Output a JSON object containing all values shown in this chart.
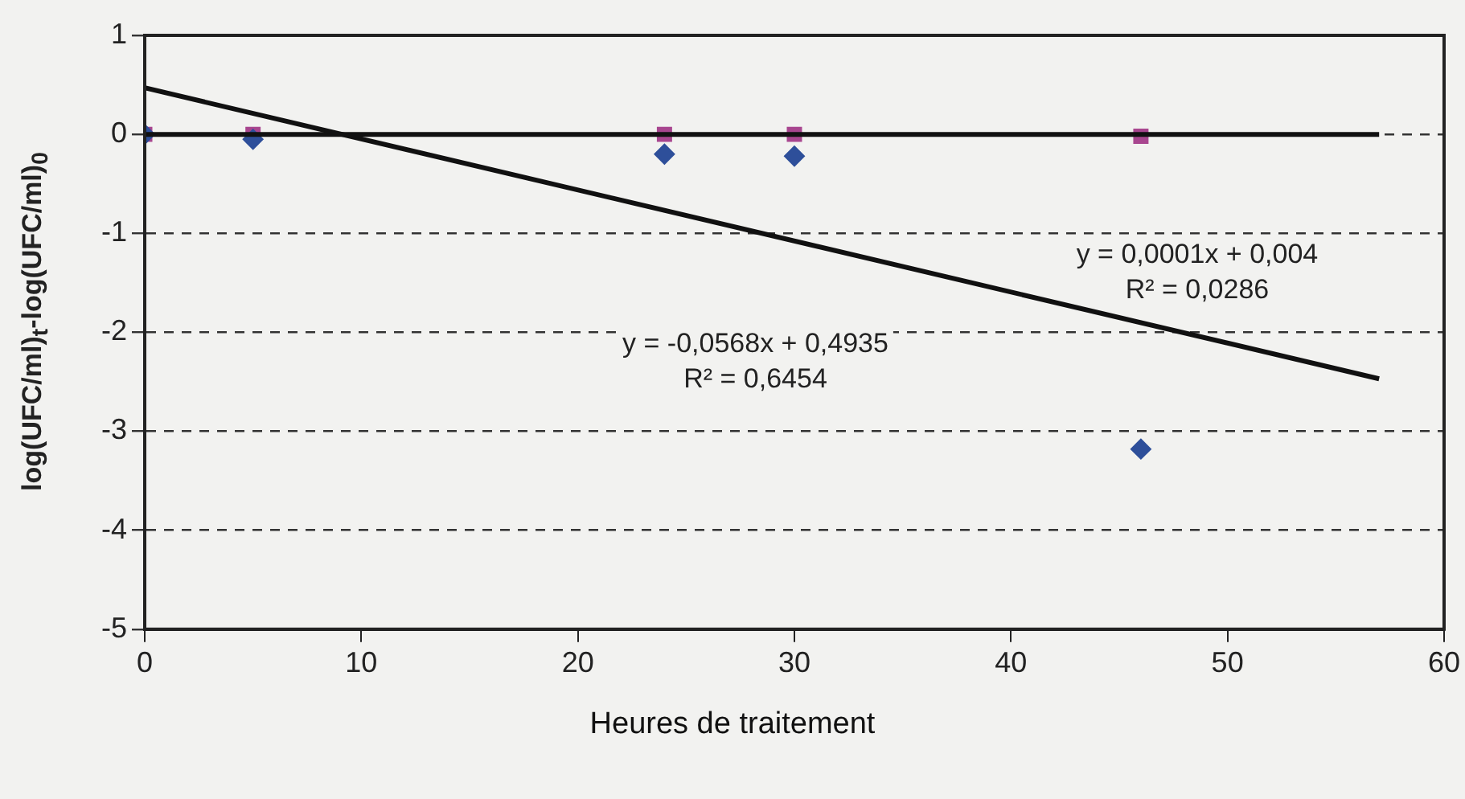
{
  "chart_data": {
    "type": "scatter",
    "xlabel": "Heures de traitement",
    "ylabel": "log(UFC/ml)$_{t}$-log(UFC/ml)$_{0}$",
    "xlim": [
      0,
      60
    ],
    "xticks": [
      0,
      10,
      20,
      30,
      40,
      50,
      60
    ],
    "ylim": [
      -5,
      1
    ],
    "yticks": [
      -5,
      -4,
      -3,
      -2,
      -1,
      0,
      1
    ],
    "grid": "y",
    "legend": false,
    "series": [
      {
        "type": "scatter",
        "marker": "diamond",
        "color": "#2e4f9a",
        "x": [
          0,
          5,
          24,
          30,
          46
        ],
        "values": [
          0,
          -0.05,
          -0.2,
          -0.22,
          -3.18
        ]
      },
      {
        "type": "scatter",
        "marker": "square",
        "color": "#a8468f",
        "x": [
          0,
          5,
          24,
          30,
          46
        ],
        "values": [
          0,
          0,
          0,
          0,
          -0.02
        ]
      },
      {
        "type": "line",
        "color": "#111111",
        "x": [
          0,
          57
        ],
        "values": [
          0.47,
          -2.47
        ]
      },
      {
        "type": "line",
        "color": "#111111",
        "x": [
          0,
          57
        ],
        "values": [
          0,
          0
        ]
      }
    ],
    "annotations": [
      "y = -0,0568x + 0,4935",
      "R² = 0,6454",
      "y = 0,0001x + 0,004",
      "R² = 0,0286"
    ]
  }
}
